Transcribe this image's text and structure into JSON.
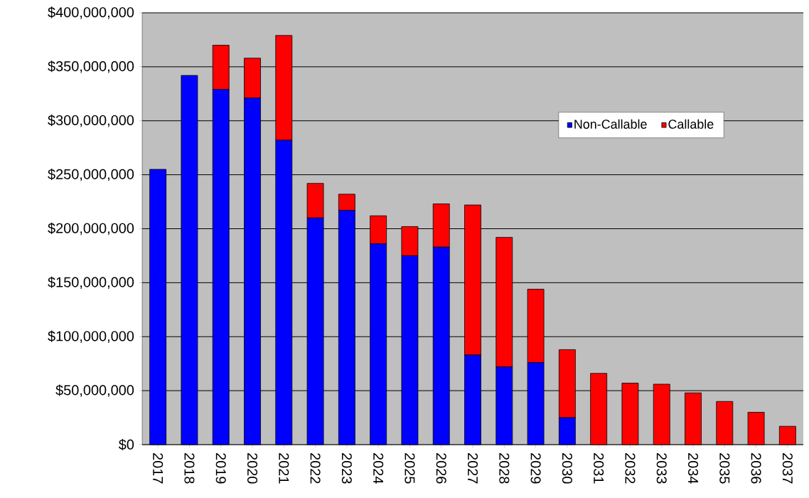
{
  "chart_data": {
    "type": "bar",
    "stacked": true,
    "categories": [
      "2017",
      "2018",
      "2019",
      "2020",
      "2021",
      "2022",
      "2023",
      "2024",
      "2025",
      "2026",
      "2027",
      "2028",
      "2029",
      "2030",
      "2031",
      "2032",
      "2033",
      "2034",
      "2035",
      "2036",
      "2037"
    ],
    "series": [
      {
        "name": "Non-Callable",
        "color": "#0000ff",
        "values": [
          255000000,
          342000000,
          329000000,
          321000000,
          282000000,
          210000000,
          217000000,
          186000000,
          175000000,
          183000000,
          83000000,
          72000000,
          76000000,
          25000000,
          0,
          0,
          0,
          0,
          0,
          0,
          0
        ]
      },
      {
        "name": "Callable",
        "color": "#ff0000",
        "values": [
          0,
          0,
          41000000,
          37000000,
          97000000,
          32000000,
          15000000,
          26000000,
          27000000,
          40000000,
          139000000,
          120000000,
          68000000,
          63000000,
          66000000,
          57000000,
          56000000,
          48000000,
          40000000,
          30000000,
          17000000
        ]
      }
    ],
    "ylim": [
      0,
      400000000
    ],
    "yticks": [
      {
        "value": 0,
        "label": "$0"
      },
      {
        "value": 50000000,
        "label": "$50,000,000"
      },
      {
        "value": 100000000,
        "label": "$100,000,000"
      },
      {
        "value": 150000000,
        "label": "$150,000,000"
      },
      {
        "value": 200000000,
        "label": "$200,000,000"
      },
      {
        "value": 250000000,
        "label": "$250,000,000"
      },
      {
        "value": 300000000,
        "label": "$300,000,000"
      },
      {
        "value": 350000000,
        "label": "$350,000,000"
      },
      {
        "value": 400000000,
        "label": "$400,000,000"
      }
    ],
    "grid": "y",
    "legend": "top right"
  }
}
